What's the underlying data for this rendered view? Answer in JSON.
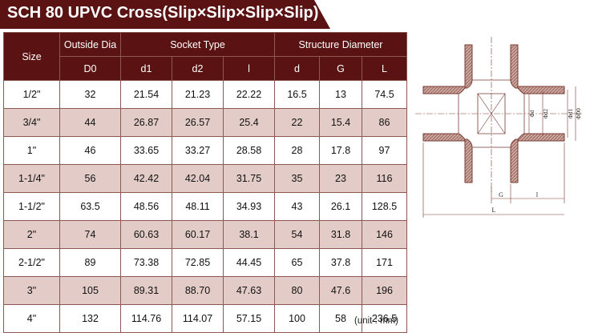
{
  "title": "SCH 80 UPVC Cross(Slip×Slip×Slip×Slip)",
  "table": {
    "headers": {
      "size": "Size",
      "outside_dia": "Outside Dia",
      "socket_type": "Socket Type",
      "structure_diameter": "Structure Diameter",
      "sub": [
        "D0",
        "d1",
        "d2",
        "l",
        "d",
        "G",
        "L"
      ]
    },
    "rows": [
      [
        "1/2\"",
        "32",
        "21.54",
        "21.23",
        "22.22",
        "16.5",
        "13",
        "74.5"
      ],
      [
        "3/4\"",
        "44",
        "26.87",
        "26.57",
        "25.4",
        "22",
        "15.4",
        "86"
      ],
      [
        "1\"",
        "46",
        "33.65",
        "33.27",
        "28.58",
        "28",
        "17.8",
        "97"
      ],
      [
        "1-1/4\"",
        "56",
        "42.42",
        "42.04",
        "31.75",
        "35",
        "23",
        "116"
      ],
      [
        "1-1/2\"",
        "63.5",
        "48.56",
        "48.11",
        "34.93",
        "43",
        "26.1",
        "128.5"
      ],
      [
        "2\"",
        "74",
        "60.63",
        "60.17",
        "38.1",
        "54",
        "31.8",
        "146"
      ],
      [
        "2-1/2\"",
        "89",
        "73.38",
        "72.85",
        "44.45",
        "65",
        "37.8",
        "171"
      ],
      [
        "3\"",
        "105",
        "89.31",
        "88.70",
        "47.63",
        "80",
        "47.6",
        "196"
      ],
      [
        "4\"",
        "132",
        "114.76",
        "114.07",
        "57.15",
        "100",
        "58",
        "236.5"
      ]
    ]
  },
  "unit_note": "(unit : mm)",
  "drawing_labels": {
    "d": "Φd",
    "d2": "Φd2",
    "d1": "Φd1",
    "d0": "ΦD0",
    "G": "G",
    "l": "l",
    "L": "L"
  },
  "colors": {
    "header_bg": "#5b1212",
    "stripe_bg": "#e3ccc8",
    "drawing_fill": "#c9a59e",
    "drawing_stroke": "#7a3b32"
  }
}
